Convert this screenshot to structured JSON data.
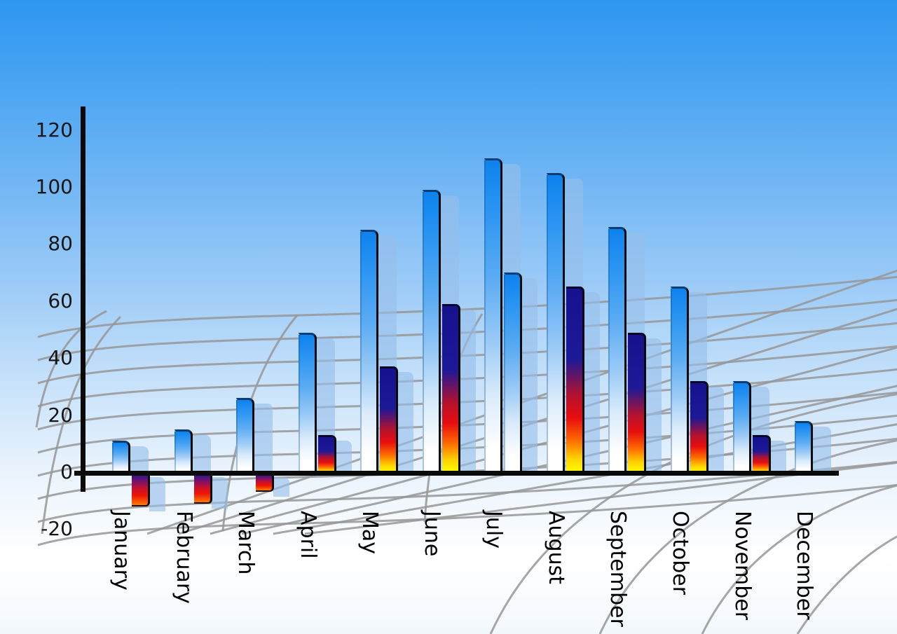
{
  "chart_data": {
    "type": "bar",
    "title": "",
    "xlabel": "",
    "ylabel": "",
    "categories": [
      "January",
      "February",
      "March",
      "April",
      "May",
      "June",
      "July",
      "August",
      "September",
      "October",
      "November",
      "December"
    ],
    "series": [
      {
        "name": "primary-blue-bars",
        "values": [
          11,
          15,
          26,
          49,
          85,
          99,
          110,
          105,
          86,
          65,
          32,
          18
        ]
      },
      {
        "name": "secondary-gradient-bars",
        "values": [
          -11,
          -10,
          -6,
          13,
          37,
          59,
          70,
          65,
          49,
          32,
          13,
          null
        ]
      }
    ],
    "secondary_bar_styles": [
      "warm",
      "warm",
      "warm",
      "warm",
      "warm",
      "warm",
      "blue",
      "warm",
      "warm",
      "warm",
      "warm",
      "none"
    ],
    "y_ticks": [
      120,
      100,
      80,
      60,
      40,
      20,
      0,
      -20
    ],
    "y_tick_labels": [
      "120",
      "100",
      "80",
      "60",
      "40",
      "20",
      "0",
      "-20"
    ],
    "ylim": [
      -20,
      120
    ],
    "grid": "perspective-floor-grid",
    "legend_position": "none"
  },
  "colors": {
    "sky_top": "#2e97f0",
    "sky_bottom": "#ffffff",
    "blue_bar_top": "#0d82ee",
    "blue_bar_bottom": "#ffffff",
    "warm_bar_navy": "#16128e",
    "warm_bar_red": "#e80e0e",
    "warm_bar_yellow": "#ffff00",
    "shadow_bar": "#96bee9",
    "grid_line": "#979797",
    "axis_line": "#0a0a0a",
    "tick_text": "#151515",
    "month_text": "#000000"
  }
}
